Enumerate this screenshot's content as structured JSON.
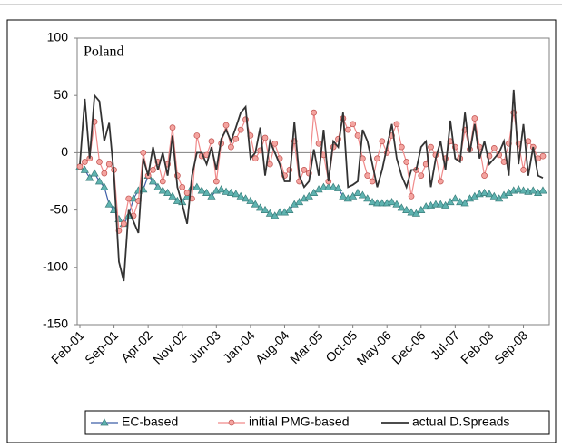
{
  "chart_data": {
    "type": "line",
    "annotation": "Poland",
    "categories": [
      "Feb-01",
      null,
      null,
      null,
      null,
      null,
      null,
      "Sep-01",
      null,
      null,
      null,
      null,
      null,
      null,
      "Apr-02",
      null,
      null,
      null,
      null,
      null,
      null,
      "Nov-02",
      null,
      null,
      null,
      null,
      null,
      null,
      "Jun-03",
      null,
      null,
      null,
      null,
      null,
      null,
      "Jan-04",
      null,
      null,
      null,
      null,
      null,
      null,
      "Aug-04",
      null,
      null,
      null,
      null,
      null,
      null,
      "Mar-05",
      null,
      null,
      null,
      null,
      null,
      null,
      "Oct-05",
      null,
      null,
      null,
      null,
      null,
      null,
      "May-06",
      null,
      null,
      null,
      null,
      null,
      null,
      "Dec-06",
      null,
      null,
      null,
      null,
      null,
      null,
      "Jul-07",
      null,
      null,
      null,
      null,
      null,
      null,
      "Feb-08",
      null,
      null,
      null,
      null,
      null,
      null,
      "Sep-08",
      null,
      null,
      null,
      null
    ],
    "ylim": [
      -150,
      100
    ],
    "yticks": [
      -150,
      -100,
      -50,
      0,
      50,
      100
    ],
    "legend": "bottom",
    "series": [
      {
        "name": "EC-based",
        "color": "#3f5fa8",
        "marker": "triangle",
        "marker_color": "#5fb3b0",
        "values": [
          -12,
          -15,
          -22,
          -18,
          -25,
          -30,
          -45,
          -50,
          -58,
          -62,
          -55,
          -40,
          -33,
          -32,
          -20,
          -25,
          -30,
          -33,
          -35,
          -38,
          -42,
          -43,
          -38,
          -30,
          -30,
          -33,
          -35,
          -38,
          -33,
          -32,
          -34,
          -35,
          -36,
          -38,
          -40,
          -42,
          -45,
          -48,
          -50,
          -53,
          -55,
          -52,
          -52,
          -50,
          -45,
          -43,
          -40,
          -38,
          -35,
          -32,
          -30,
          -30,
          -30,
          -31,
          -38,
          -40,
          -38,
          -35,
          -37,
          -40,
          -43,
          -44,
          -44,
          -44,
          -43,
          -45,
          -48,
          -50,
          -52,
          -53,
          -50,
          -47,
          -46,
          -45,
          -45,
          -46,
          -43,
          -40,
          -43,
          -44,
          -40,
          -38,
          -36,
          -35,
          -36,
          -38,
          -40,
          -37,
          -35,
          -33,
          -32,
          -33,
          -34,
          -33,
          -35,
          -33
        ]
      },
      {
        "name": "initial PMG-based",
        "color": "#f08a8a",
        "marker": "circle",
        "marker_color": "#f4a4a0",
        "values": [
          -12,
          -8,
          -5,
          27,
          -8,
          -18,
          -10,
          -15,
          -68,
          -62,
          -40,
          -55,
          -42,
          0,
          -20,
          -15,
          -8,
          -25,
          -10,
          22,
          -20,
          -30,
          -35,
          -40,
          15,
          -3,
          -2,
          10,
          -25,
          8,
          24,
          5,
          12,
          20,
          29,
          15,
          -5,
          2,
          13,
          -10,
          8,
          -5,
          -20,
          -15,
          10,
          -25,
          -15,
          -18,
          35,
          8,
          -2,
          -25,
          5,
          12,
          30,
          20,
          25,
          15,
          -5,
          -20,
          -25,
          -5,
          10,
          0,
          15,
          25,
          5,
          -8,
          -38,
          -15,
          -20,
          -10,
          5,
          -2,
          -25,
          -5,
          10,
          5,
          -5,
          20,
          3,
          30,
          5,
          -20,
          -3,
          4,
          -2,
          -8,
          8,
          35,
          8,
          -15,
          10,
          5,
          -5,
          -3
        ]
      },
      {
        "name": "actual D.Spreads",
        "color": "#333333",
        "marker": "none",
        "values": [
          -10,
          47,
          -5,
          50,
          45,
          10,
          26,
          -20,
          -95,
          -112,
          -50,
          -60,
          -70,
          -5,
          -20,
          5,
          -15,
          0,
          -20,
          15,
          -30,
          -45,
          -62,
          -20,
          0,
          0,
          -10,
          5,
          -15,
          12,
          20,
          10,
          22,
          35,
          40,
          -5,
          0,
          22,
          -20,
          10,
          0,
          -10,
          -25,
          -25,
          27,
          -20,
          -30,
          -25,
          3,
          -20,
          20,
          -25,
          10,
          5,
          35,
          -30,
          -28,
          -25,
          20,
          10,
          -10,
          -30,
          -15,
          5,
          25,
          -5,
          -20,
          -30,
          -15,
          -15,
          5,
          10,
          -30,
          -5,
          10,
          -15,
          28,
          -5,
          -8,
          35,
          0,
          25,
          -5,
          10,
          -10,
          -5,
          0,
          10,
          -20,
          55,
          -10,
          25,
          -20,
          5,
          -20,
          -22
        ]
      }
    ]
  }
}
